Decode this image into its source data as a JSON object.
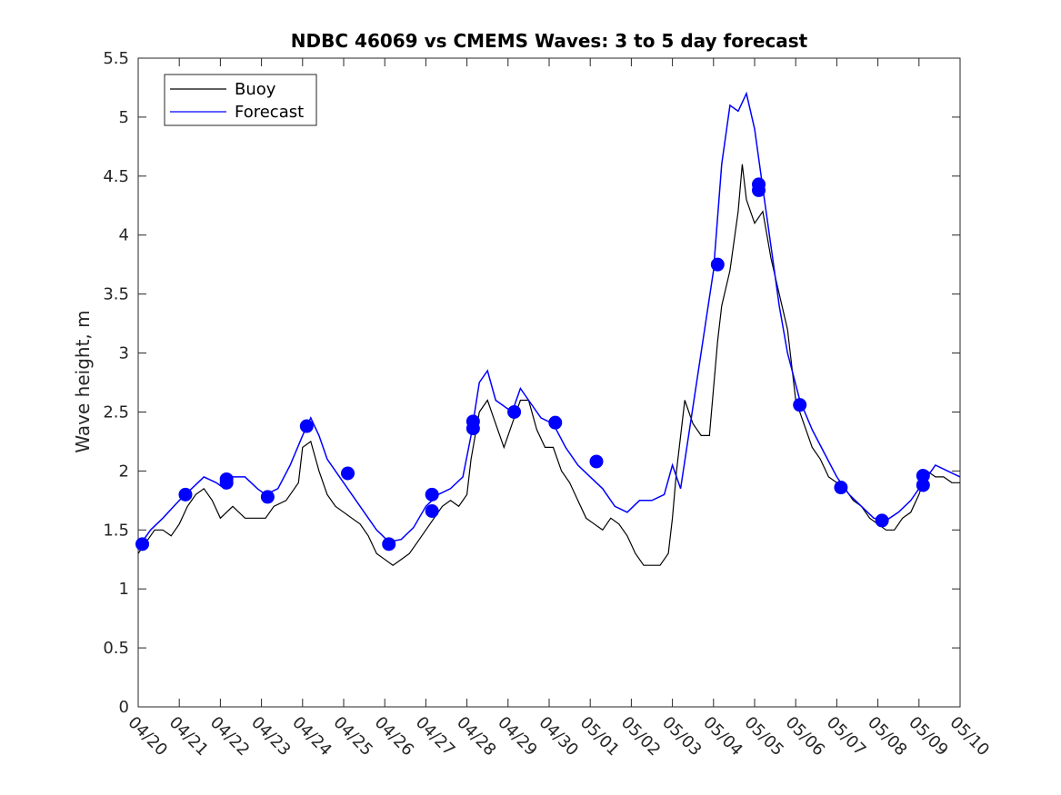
{
  "chart_data": {
    "type": "line",
    "title": "NDBC 46069 vs CMEMS Waves: 3 to 5 day forecast",
    "xlabel": "",
    "ylabel": "Wave height, m",
    "xlim": [
      "04/20",
      "05/10"
    ],
    "ylim": [
      0,
      5.5
    ],
    "x_ticks": [
      "04/20",
      "04/21",
      "04/22",
      "04/23",
      "04/24",
      "04/25",
      "04/26",
      "04/27",
      "04/28",
      "04/29",
      "04/30",
      "05/01",
      "05/02",
      "05/03",
      "05/04",
      "05/05",
      "05/06",
      "05/07",
      "05/08",
      "05/09",
      "05/10"
    ],
    "y_ticks": [
      "0",
      "0.5",
      "1",
      "1.5",
      "2",
      "2.5",
      "3",
      "3.5",
      "4",
      "4.5",
      "5",
      "5.5"
    ],
    "grid": false,
    "legend": {
      "position": "top-left",
      "entries": [
        "Buoy",
        "Forecast"
      ]
    },
    "colors": {
      "buoy": "#000000",
      "forecast": "#0000ff",
      "marker": "#0000ff",
      "axis": "#262626"
    },
    "series": [
      {
        "name": "Buoy",
        "color": "#000000",
        "points": [
          [
            0,
            1.3
          ],
          [
            0.2,
            1.4
          ],
          [
            0.4,
            1.5
          ],
          [
            0.6,
            1.5
          ],
          [
            0.8,
            1.45
          ],
          [
            1.0,
            1.55
          ],
          [
            1.2,
            1.7
          ],
          [
            1.4,
            1.8
          ],
          [
            1.6,
            1.85
          ],
          [
            1.8,
            1.75
          ],
          [
            2.0,
            1.6
          ],
          [
            2.3,
            1.7
          ],
          [
            2.6,
            1.6
          ],
          [
            2.9,
            1.6
          ],
          [
            3.1,
            1.6
          ],
          [
            3.3,
            1.7
          ],
          [
            3.6,
            1.75
          ],
          [
            3.9,
            1.9
          ],
          [
            4.0,
            2.2
          ],
          [
            4.2,
            2.25
          ],
          [
            4.4,
            2.0
          ],
          [
            4.6,
            1.8
          ],
          [
            4.8,
            1.7
          ],
          [
            5.0,
            1.65
          ],
          [
            5.2,
            1.6
          ],
          [
            5.4,
            1.55
          ],
          [
            5.6,
            1.45
          ],
          [
            5.8,
            1.3
          ],
          [
            6.0,
            1.25
          ],
          [
            6.2,
            1.2
          ],
          [
            6.4,
            1.25
          ],
          [
            6.6,
            1.3
          ],
          [
            6.8,
            1.4
          ],
          [
            7.0,
            1.5
          ],
          [
            7.2,
            1.6
          ],
          [
            7.4,
            1.7
          ],
          [
            7.6,
            1.75
          ],
          [
            7.8,
            1.7
          ],
          [
            8.0,
            1.8
          ],
          [
            8.1,
            2.1
          ],
          [
            8.3,
            2.5
          ],
          [
            8.5,
            2.6
          ],
          [
            8.7,
            2.4
          ],
          [
            8.9,
            2.2
          ],
          [
            9.1,
            2.4
          ],
          [
            9.3,
            2.6
          ],
          [
            9.5,
            2.6
          ],
          [
            9.7,
            2.35
          ],
          [
            9.9,
            2.2
          ],
          [
            10.1,
            2.2
          ],
          [
            10.3,
            2.0
          ],
          [
            10.5,
            1.9
          ],
          [
            10.7,
            1.75
          ],
          [
            10.9,
            1.6
          ],
          [
            11.1,
            1.55
          ],
          [
            11.3,
            1.5
          ],
          [
            11.5,
            1.6
          ],
          [
            11.7,
            1.55
          ],
          [
            11.9,
            1.45
          ],
          [
            12.1,
            1.3
          ],
          [
            12.3,
            1.2
          ],
          [
            12.5,
            1.2
          ],
          [
            12.7,
            1.2
          ],
          [
            12.9,
            1.3
          ],
          [
            13.0,
            1.6
          ],
          [
            13.1,
            2.0
          ],
          [
            13.3,
            2.6
          ],
          [
            13.5,
            2.4
          ],
          [
            13.7,
            2.3
          ],
          [
            13.9,
            2.3
          ],
          [
            14.0,
            2.7
          ],
          [
            14.1,
            3.1
          ],
          [
            14.2,
            3.4
          ],
          [
            14.4,
            3.7
          ],
          [
            14.6,
            4.2
          ],
          [
            14.7,
            4.6
          ],
          [
            14.8,
            4.3
          ],
          [
            15.0,
            4.1
          ],
          [
            15.2,
            4.2
          ],
          [
            15.4,
            3.8
          ],
          [
            15.6,
            3.5
          ],
          [
            15.8,
            3.2
          ],
          [
            16.0,
            2.6
          ],
          [
            16.2,
            2.4
          ],
          [
            16.4,
            2.2
          ],
          [
            16.6,
            2.1
          ],
          [
            16.8,
            1.95
          ],
          [
            17.0,
            1.9
          ],
          [
            17.2,
            1.85
          ],
          [
            17.4,
            1.75
          ],
          [
            17.6,
            1.7
          ],
          [
            17.8,
            1.6
          ],
          [
            18.0,
            1.55
          ],
          [
            18.2,
            1.5
          ],
          [
            18.4,
            1.5
          ],
          [
            18.6,
            1.6
          ],
          [
            18.8,
            1.65
          ],
          [
            19.0,
            1.8
          ],
          [
            19.2,
            2.0
          ],
          [
            19.4,
            1.95
          ],
          [
            19.6,
            1.95
          ],
          [
            19.8,
            1.9
          ],
          [
            20.0,
            1.9
          ]
        ]
      },
      {
        "name": "Forecast",
        "color": "#0000ff",
        "points": [
          [
            0,
            1.35
          ],
          [
            0.3,
            1.5
          ],
          [
            0.6,
            1.6
          ],
          [
            1.0,
            1.75
          ],
          [
            1.3,
            1.85
          ],
          [
            1.6,
            1.95
          ],
          [
            1.9,
            1.9
          ],
          [
            2.1,
            1.85
          ],
          [
            2.3,
            1.95
          ],
          [
            2.6,
            1.95
          ],
          [
            2.9,
            1.85
          ],
          [
            3.1,
            1.8
          ],
          [
            3.4,
            1.85
          ],
          [
            3.7,
            2.05
          ],
          [
            4.0,
            2.3
          ],
          [
            4.2,
            2.45
          ],
          [
            4.4,
            2.3
          ],
          [
            4.6,
            2.1
          ],
          [
            4.9,
            1.95
          ],
          [
            5.2,
            1.8
          ],
          [
            5.5,
            1.65
          ],
          [
            5.8,
            1.5
          ],
          [
            6.1,
            1.4
          ],
          [
            6.4,
            1.42
          ],
          [
            6.7,
            1.52
          ],
          [
            7.0,
            1.7
          ],
          [
            7.3,
            1.8
          ],
          [
            7.6,
            1.85
          ],
          [
            7.9,
            1.95
          ],
          [
            8.1,
            2.3
          ],
          [
            8.3,
            2.75
          ],
          [
            8.5,
            2.85
          ],
          [
            8.7,
            2.6
          ],
          [
            8.9,
            2.55
          ],
          [
            9.1,
            2.5
          ],
          [
            9.3,
            2.7
          ],
          [
            9.5,
            2.6
          ],
          [
            9.8,
            2.45
          ],
          [
            10.1,
            2.4
          ],
          [
            10.4,
            2.2
          ],
          [
            10.7,
            2.05
          ],
          [
            11.0,
            1.95
          ],
          [
            11.3,
            1.85
          ],
          [
            11.6,
            1.7
          ],
          [
            11.9,
            1.65
          ],
          [
            12.2,
            1.75
          ],
          [
            12.5,
            1.75
          ],
          [
            12.8,
            1.8
          ],
          [
            13.0,
            2.05
          ],
          [
            13.2,
            1.85
          ],
          [
            14.0,
            3.7
          ],
          [
            14.2,
            4.6
          ],
          [
            14.4,
            5.1
          ],
          [
            14.6,
            5.05
          ],
          [
            14.8,
            5.2
          ],
          [
            15.0,
            4.9
          ],
          [
            15.2,
            4.4
          ],
          [
            15.4,
            3.9
          ],
          [
            15.6,
            3.4
          ],
          [
            15.8,
            3.0
          ],
          [
            16.1,
            2.6
          ],
          [
            16.4,
            2.35
          ],
          [
            16.7,
            2.15
          ],
          [
            17.0,
            1.95
          ],
          [
            17.3,
            1.8
          ],
          [
            17.6,
            1.7
          ],
          [
            17.9,
            1.6
          ],
          [
            18.2,
            1.58
          ],
          [
            18.5,
            1.65
          ],
          [
            18.8,
            1.75
          ],
          [
            19.1,
            1.9
          ],
          [
            19.4,
            2.05
          ],
          [
            19.7,
            2.0
          ],
          [
            20.0,
            1.95
          ]
        ]
      }
    ],
    "markers": [
      [
        0.1,
        1.38
      ],
      [
        1.15,
        1.8
      ],
      [
        2.15,
        1.9
      ],
      [
        2.15,
        1.93
      ],
      [
        3.15,
        1.78
      ],
      [
        4.1,
        2.38
      ],
      [
        5.1,
        1.98
      ],
      [
        6.1,
        1.38
      ],
      [
        7.15,
        1.66
      ],
      [
        7.15,
        1.8
      ],
      [
        8.15,
        2.36
      ],
      [
        8.15,
        2.42
      ],
      [
        9.15,
        2.5
      ],
      [
        10.15,
        2.41
      ],
      [
        11.15,
        2.08
      ],
      [
        14.1,
        3.75
      ],
      [
        15.1,
        4.38
      ],
      [
        15.1,
        4.43
      ],
      [
        16.1,
        2.56
      ],
      [
        17.1,
        1.86
      ],
      [
        18.1,
        1.58
      ],
      [
        19.1,
        1.88
      ],
      [
        19.1,
        1.96
      ]
    ]
  }
}
